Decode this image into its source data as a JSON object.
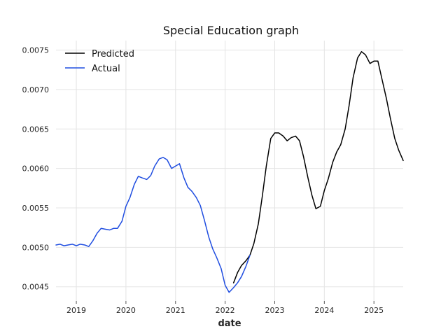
{
  "chart_data": {
    "type": "line",
    "title": "Special Education graph",
    "xlabel": "date",
    "ylabel": "",
    "x_ticks": [
      "2019",
      "2020",
      "2021",
      "2022",
      "2023",
      "2024",
      "2025"
    ],
    "y_ticks": [
      "0.0045",
      "0.0050",
      "0.0055",
      "0.0060",
      "0.0065",
      "0.0070",
      "0.0075"
    ],
    "xlim": [
      2018.59,
      2025.59
    ],
    "ylim": [
      0.00432,
      0.00762
    ],
    "grid": true,
    "legend_position": "top-left",
    "series": [
      {
        "name": "Predicted",
        "color": "#000000",
        "x": [
          2022.17,
          2022.25,
          2022.33,
          2022.42,
          2022.5,
          2022.58,
          2022.67,
          2022.75,
          2022.83,
          2022.92,
          2023.0,
          2023.08,
          2023.17,
          2023.25,
          2023.33,
          2023.42,
          2023.5,
          2023.58,
          2023.67,
          2023.75,
          2023.83,
          2023.92,
          2024.0,
          2024.08,
          2024.17,
          2024.25,
          2024.33,
          2024.42,
          2024.5,
          2024.58,
          2024.67,
          2024.75,
          2024.83,
          2024.92,
          2025.0,
          2025.08,
          2025.17,
          2025.25,
          2025.33,
          2025.42,
          2025.5,
          2025.59
        ],
        "y": [
          0.00455,
          0.00468,
          0.00477,
          0.00483,
          0.0049,
          0.00505,
          0.0053,
          0.00565,
          0.00603,
          0.00638,
          0.00645,
          0.00645,
          0.00641,
          0.00635,
          0.00639,
          0.00641,
          0.00635,
          0.00615,
          0.00588,
          0.00566,
          0.00549,
          0.00552,
          0.00572,
          0.00587,
          0.00608,
          0.00621,
          0.0063,
          0.0065,
          0.0068,
          0.00715,
          0.0074,
          0.00748,
          0.00744,
          0.00733,
          0.00736,
          0.00736,
          0.00711,
          0.00689,
          0.00664,
          0.00638,
          0.00623,
          0.0061
        ]
      },
      {
        "name": "Actual",
        "color": "#1f4de0",
        "x": [
          2018.59,
          2018.67,
          2018.75,
          2018.83,
          2018.92,
          2019.0,
          2019.08,
          2019.17,
          2019.25,
          2019.33,
          2019.42,
          2019.5,
          2019.58,
          2019.67,
          2019.75,
          2019.83,
          2019.92,
          2020.0,
          2020.08,
          2020.17,
          2020.25,
          2020.33,
          2020.42,
          2020.5,
          2020.58,
          2020.67,
          2020.75,
          2020.83,
          2020.92,
          2021.0,
          2021.08,
          2021.17,
          2021.25,
          2021.33,
          2021.42,
          2021.5,
          2021.58,
          2021.67,
          2021.75,
          2021.83,
          2021.92,
          2022.0,
          2022.08,
          2022.17,
          2022.25,
          2022.33,
          2022.42,
          2022.5
        ],
        "y": [
          0.00503,
          0.00504,
          0.00502,
          0.00503,
          0.00504,
          0.00502,
          0.00504,
          0.00503,
          0.00501,
          0.00508,
          0.00518,
          0.00524,
          0.00523,
          0.00522,
          0.00524,
          0.00524,
          0.00533,
          0.00552,
          0.00563,
          0.0058,
          0.0059,
          0.00588,
          0.00586,
          0.00591,
          0.00603,
          0.00612,
          0.00614,
          0.00611,
          0.006,
          0.00603,
          0.00606,
          0.00588,
          0.00576,
          0.00571,
          0.00563,
          0.00553,
          0.00535,
          0.00513,
          0.00498,
          0.00487,
          0.00473,
          0.00452,
          0.00443,
          0.00449,
          0.00455,
          0.00463,
          0.00476,
          0.0049
        ]
      }
    ]
  }
}
